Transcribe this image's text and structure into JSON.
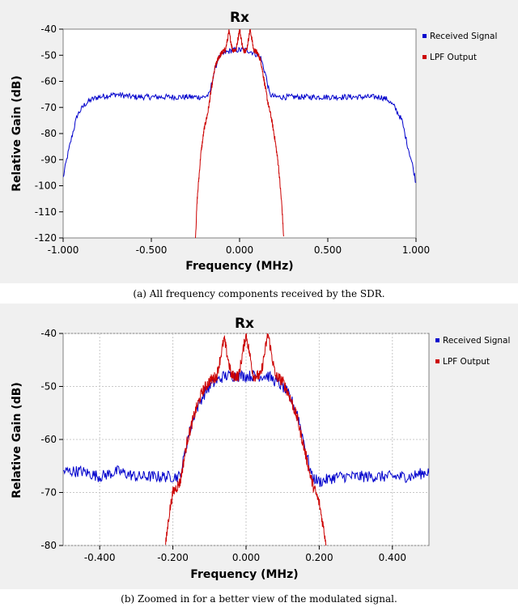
{
  "chart_data": [
    {
      "type": "line",
      "title": "Rx",
      "xlabel": "Frequency (MHz)",
      "ylabel": "Relative Gain (dB)",
      "xlim": [
        -1.0,
        1.0
      ],
      "ylim": [
        -120,
        -40
      ],
      "x_ticks": [
        "-1.000",
        "-0.500",
        "0.000",
        "0.500",
        "1.000"
      ],
      "x_tick_values": [
        -1.0,
        -0.5,
        0.0,
        0.5,
        1.0
      ],
      "y_ticks": [
        "-40",
        "-50",
        "-60",
        "-70",
        "-80",
        "-90",
        "-100",
        "-110",
        "-120"
      ],
      "y_tick_values": [
        -40,
        -50,
        -60,
        -70,
        -80,
        -90,
        -100,
        -110,
        -120
      ],
      "grid": false,
      "legend_position": "right",
      "caption": "(a) All frequency components received by the SDR.",
      "series": [
        {
          "name": "Received Signal",
          "color": "#0000cc",
          "points": [
            [
              -1.0,
              -97
            ],
            [
              -0.98,
              -90
            ],
            [
              -0.95,
              -81
            ],
            [
              -0.92,
              -73
            ],
            [
              -0.88,
              -69
            ],
            [
              -0.84,
              -67
            ],
            [
              -0.8,
              -66
            ],
            [
              -0.7,
              -65
            ],
            [
              -0.6,
              -66
            ],
            [
              -0.5,
              -66
            ],
            [
              -0.4,
              -66
            ],
            [
              -0.3,
              -66
            ],
            [
              -0.2,
              -66
            ],
            [
              -0.17,
              -65
            ],
            [
              -0.15,
              -58
            ],
            [
              -0.12,
              -51
            ],
            [
              -0.08,
              -49
            ],
            [
              -0.04,
              -48
            ],
            [
              0.0,
              -48
            ],
            [
              0.04,
              -48
            ],
            [
              0.08,
              -49
            ],
            [
              0.12,
              -51
            ],
            [
              0.15,
              -58
            ],
            [
              0.17,
              -65
            ],
            [
              0.2,
              -66
            ],
            [
              0.3,
              -66
            ],
            [
              0.4,
              -66
            ],
            [
              0.5,
              -66
            ],
            [
              0.6,
              -66
            ],
            [
              0.7,
              -66
            ],
            [
              0.8,
              -66
            ],
            [
              0.84,
              -67
            ],
            [
              0.88,
              -70
            ],
            [
              0.92,
              -75
            ],
            [
              0.95,
              -84
            ],
            [
              0.98,
              -92
            ],
            [
              1.0,
              -99
            ]
          ]
        },
        {
          "name": "LPF Output",
          "color": "#cc0000",
          "points": [
            [
              -0.25,
              -120
            ],
            [
              -0.24,
              -105
            ],
            [
              -0.22,
              -88
            ],
            [
              -0.2,
              -78
            ],
            [
              -0.18,
              -72
            ],
            [
              -0.16,
              -63
            ],
            [
              -0.14,
              -55
            ],
            [
              -0.12,
              -51
            ],
            [
              -0.1,
              -49
            ],
            [
              -0.08,
              -48
            ],
            [
              -0.06,
              -41
            ],
            [
              -0.04,
              -48
            ],
            [
              -0.02,
              -48
            ],
            [
              0.0,
              -40
            ],
            [
              0.02,
              -48
            ],
            [
              0.04,
              -48
            ],
            [
              0.06,
              -40
            ],
            [
              0.08,
              -48
            ],
            [
              0.1,
              -49
            ],
            [
              0.12,
              -52
            ],
            [
              0.14,
              -60
            ],
            [
              0.16,
              -68
            ],
            [
              0.18,
              -74
            ],
            [
              0.2,
              -82
            ],
            [
              0.22,
              -92
            ],
            [
              0.24,
              -108
            ],
            [
              0.25,
              -120
            ]
          ]
        }
      ]
    },
    {
      "type": "line",
      "title": "Rx",
      "xlabel": "Frequency (MHz)",
      "ylabel": "Relative Gain (dB)",
      "xlim": [
        -0.5,
        0.5
      ],
      "ylim": [
        -80,
        -40
      ],
      "x_ticks": [
        "-0.400",
        "-0.200",
        "0.000",
        "0.200",
        "0.400"
      ],
      "x_tick_values": [
        -0.4,
        -0.2,
        0.0,
        0.2,
        0.4
      ],
      "y_ticks": [
        "-40",
        "-50",
        "-60",
        "-70",
        "-80"
      ],
      "y_tick_values": [
        -40,
        -50,
        -60,
        -70,
        -80
      ],
      "grid": true,
      "legend_position": "right",
      "caption": "(b) Zoomed in for a better view of the modulated signal.",
      "series": [
        {
          "name": "Received Signal",
          "color": "#0000cc",
          "points": [
            [
              -0.5,
              -66
            ],
            [
              -0.45,
              -66
            ],
            [
              -0.4,
              -67
            ],
            [
              -0.35,
              -66
            ],
            [
              -0.3,
              -67
            ],
            [
              -0.25,
              -67
            ],
            [
              -0.2,
              -67
            ],
            [
              -0.18,
              -67
            ],
            [
              -0.16,
              -60
            ],
            [
              -0.14,
              -55
            ],
            [
              -0.12,
              -52
            ],
            [
              -0.1,
              -50
            ],
            [
              -0.08,
              -49
            ],
            [
              -0.06,
              -48
            ],
            [
              -0.04,
              -48
            ],
            [
              -0.02,
              -48
            ],
            [
              0.0,
              -48
            ],
            [
              0.02,
              -48
            ],
            [
              0.04,
              -48
            ],
            [
              0.06,
              -48
            ],
            [
              0.08,
              -49
            ],
            [
              0.1,
              -50
            ],
            [
              0.12,
              -52
            ],
            [
              0.14,
              -55
            ],
            [
              0.16,
              -61
            ],
            [
              0.18,
              -67
            ],
            [
              0.2,
              -68
            ],
            [
              0.25,
              -67
            ],
            [
              0.3,
              -67
            ],
            [
              0.35,
              -67
            ],
            [
              0.4,
              -67
            ],
            [
              0.45,
              -67
            ],
            [
              0.5,
              -66
            ]
          ]
        },
        {
          "name": "LPF Output",
          "color": "#cc0000",
          "points": [
            [
              -0.22,
              -80
            ],
            [
              -0.21,
              -74
            ],
            [
              -0.2,
              -70
            ],
            [
              -0.18,
              -68
            ],
            [
              -0.16,
              -60
            ],
            [
              -0.14,
              -55
            ],
            [
              -0.12,
              -51
            ],
            [
              -0.1,
              -49
            ],
            [
              -0.08,
              -48
            ],
            [
              -0.06,
              -41
            ],
            [
              -0.04,
              -48
            ],
            [
              -0.02,
              -48
            ],
            [
              0.0,
              -40
            ],
            [
              0.02,
              -48
            ],
            [
              0.04,
              -48
            ],
            [
              0.06,
              -40
            ],
            [
              0.08,
              -48
            ],
            [
              0.1,
              -49
            ],
            [
              0.12,
              -52
            ],
            [
              0.14,
              -56
            ],
            [
              0.16,
              -62
            ],
            [
              0.18,
              -68
            ],
            [
              0.2,
              -72
            ],
            [
              0.21,
              -76
            ],
            [
              0.22,
              -80
            ]
          ]
        }
      ]
    }
  ]
}
